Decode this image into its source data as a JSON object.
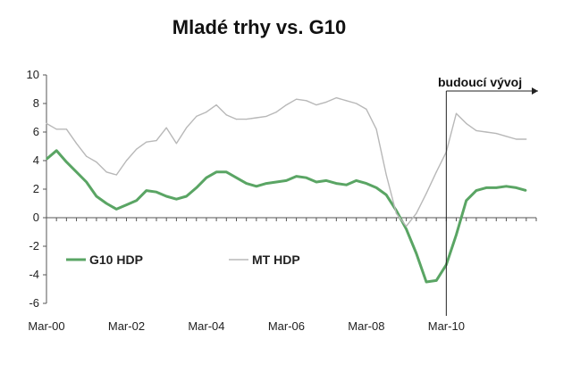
{
  "chart_data": {
    "type": "line",
    "title": "Mladé trhy vs. G10",
    "xlabel": "",
    "ylabel": "",
    "xlim": [
      2000.0,
      2012.25
    ],
    "ylim": [
      -6,
      10
    ],
    "yticks": [
      -6,
      -4,
      -2,
      0,
      2,
      4,
      6,
      8,
      10
    ],
    "xticks": [
      "Mar-00",
      "Mar-02",
      "Mar-04",
      "Mar-06",
      "Mar-08",
      "Mar-10"
    ],
    "grid": false,
    "legend": "bottom-left",
    "annotation": {
      "text": "budoucí vývoj",
      "x": 2010.0
    },
    "series": [
      {
        "name": "G10 HDP",
        "color": "#5aa564",
        "x": [
          2000.0,
          2000.25,
          2000.5,
          2000.75,
          2001.0,
          2001.25,
          2001.5,
          2001.75,
          2002.0,
          2002.25,
          2002.5,
          2002.75,
          2003.0,
          2003.25,
          2003.5,
          2003.75,
          2004.0,
          2004.25,
          2004.5,
          2004.75,
          2005.0,
          2005.25,
          2005.5,
          2005.75,
          2006.0,
          2006.25,
          2006.5,
          2006.75,
          2007.0,
          2007.25,
          2007.5,
          2007.75,
          2008.0,
          2008.25,
          2008.5,
          2008.75,
          2009.0,
          2009.25,
          2009.5,
          2009.75,
          2010.0,
          2010.25,
          2010.5,
          2010.75,
          2011.0,
          2011.25,
          2011.5,
          2011.75,
          2012.0
        ],
        "values": [
          4.1,
          4.7,
          3.9,
          3.2,
          2.5,
          1.5,
          1.0,
          0.6,
          0.9,
          1.2,
          1.9,
          1.8,
          1.5,
          1.3,
          1.5,
          2.1,
          2.8,
          3.2,
          3.2,
          2.8,
          2.4,
          2.2,
          2.4,
          2.5,
          2.6,
          2.9,
          2.8,
          2.5,
          2.6,
          2.4,
          2.3,
          2.6,
          2.4,
          2.1,
          1.6,
          0.5,
          -0.8,
          -2.5,
          -4.5,
          -4.4,
          -3.3,
          -1.2,
          1.2,
          1.9,
          2.1,
          2.1,
          2.2,
          2.1,
          1.9
        ]
      },
      {
        "name": "MT HDP",
        "color": "#b8b8b8",
        "x": [
          2000.0,
          2000.25,
          2000.5,
          2000.75,
          2001.0,
          2001.25,
          2001.5,
          2001.75,
          2002.0,
          2002.25,
          2002.5,
          2002.75,
          2003.0,
          2003.25,
          2003.5,
          2003.75,
          2004.0,
          2004.25,
          2004.5,
          2004.75,
          2005.0,
          2005.25,
          2005.5,
          2005.75,
          2006.0,
          2006.25,
          2006.5,
          2006.75,
          2007.0,
          2007.25,
          2007.5,
          2007.75,
          2008.0,
          2008.25,
          2008.5,
          2008.75,
          2009.0,
          2009.25,
          2009.5,
          2009.75,
          2010.0,
          2010.25,
          2010.5,
          2010.75,
          2011.0,
          2011.25,
          2011.5,
          2011.75,
          2012.0
        ],
        "values": [
          6.6,
          6.2,
          6.2,
          5.2,
          4.3,
          3.9,
          3.2,
          3.0,
          4.0,
          4.8,
          5.3,
          5.4,
          6.3,
          5.2,
          6.3,
          7.1,
          7.4,
          7.9,
          7.2,
          6.9,
          6.9,
          7.0,
          7.1,
          7.4,
          7.9,
          8.3,
          8.2,
          7.9,
          8.1,
          8.4,
          8.2,
          8.0,
          7.6,
          6.2,
          3.0,
          0.3,
          -0.6,
          0.3,
          1.7,
          3.2,
          4.6,
          7.3,
          6.6,
          6.1,
          6.0,
          5.9,
          5.7,
          5.5,
          5.5
        ]
      }
    ]
  }
}
